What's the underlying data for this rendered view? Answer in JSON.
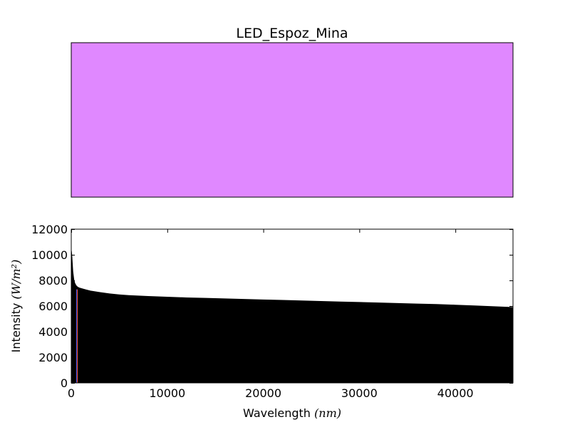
{
  "chart_data": [
    {
      "type": "color_swatch",
      "title": "LED_Espoz_Mina",
      "swatch_color": "#e088ff",
      "border_color": "#000000"
    },
    {
      "type": "area",
      "title": "",
      "xlabel_text": "Wavelength ",
      "xlabel_math": "(nm)",
      "ylabel_text": "Intensity ",
      "ylabel_math": "(W/m²)",
      "xlim": [
        0,
        46000
      ],
      "ylim": [
        0,
        12000
      ],
      "x_ticks": [
        0,
        10000,
        20000,
        30000,
        40000
      ],
      "y_ticks": [
        0,
        2000,
        4000,
        6000,
        8000,
        10000,
        12000
      ],
      "x_tick_labels": [
        "0",
        "10000",
        "20000",
        "30000",
        "40000"
      ],
      "y_tick_labels": [
        "0",
        "2000",
        "4000",
        "6000",
        "8000",
        "10000",
        "12000"
      ],
      "grid": false,
      "series": [
        {
          "fill_color": "#000000",
          "x": [
            0,
            50,
            100,
            150,
            200,
            300,
            400,
            500,
            600,
            800,
            1000,
            1500,
            2000,
            3000,
            4000,
            5000,
            6000,
            8000,
            10000,
            12000,
            14000,
            16000,
            18000,
            20000,
            22000,
            24000,
            26000,
            28000,
            30000,
            32000,
            34000,
            36000,
            38000,
            40000,
            42000,
            44000,
            46000
          ],
          "y": [
            10400,
            10300,
            9900,
            9300,
            8700,
            8100,
            7800,
            7650,
            7550,
            7450,
            7400,
            7300,
            7200,
            7080,
            6980,
            6900,
            6850,
            6780,
            6720,
            6670,
            6630,
            6590,
            6550,
            6510,
            6470,
            6430,
            6390,
            6350,
            6310,
            6270,
            6230,
            6190,
            6150,
            6100,
            6040,
            5980,
            5920
          ]
        }
      ],
      "emission_lines": [
        {
          "x": 550,
          "y": 7300,
          "color": "#3355ff"
        },
        {
          "x": 600,
          "y": 7300,
          "color": "#ff5533"
        }
      ]
    }
  ]
}
